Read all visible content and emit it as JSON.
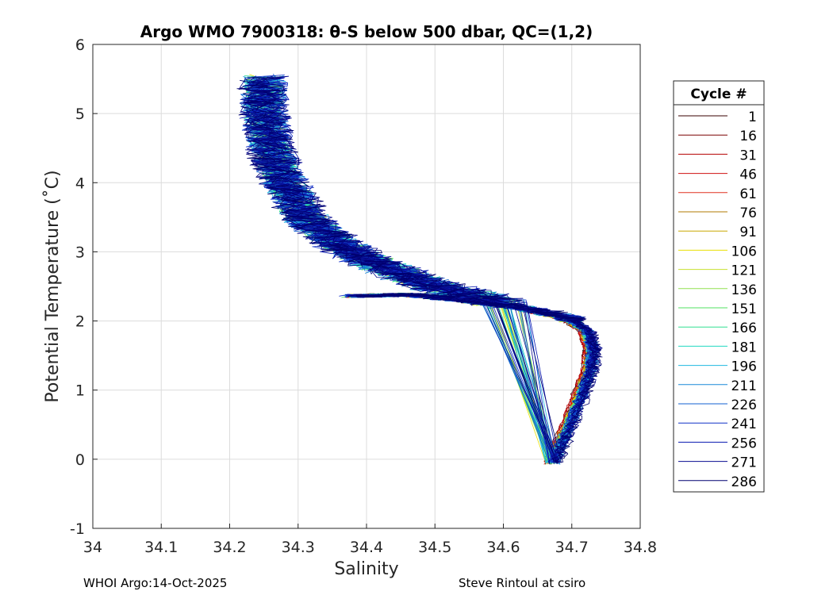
{
  "chart_data": {
    "type": "line",
    "title": "Argo WMO 7900318: θ-S below 500 dbar,  QC=(1,2)",
    "xlabel": "Salinity",
    "ylabel": "Potential Temperature (˚C)",
    "xlim": [
      34,
      34.8
    ],
    "ylim": [
      -1,
      6
    ],
    "xticks": [
      34,
      34.1,
      34.2,
      34.3,
      34.4,
      34.5,
      34.6,
      34.7,
      34.8
    ],
    "xtick_labels": [
      "34",
      "34.1",
      "34.2",
      "34.3",
      "34.4",
      "34.5",
      "34.6",
      "34.7",
      "34.8"
    ],
    "yticks": [
      -1,
      0,
      1,
      2,
      3,
      4,
      5,
      6
    ],
    "ytick_labels": [
      "-1",
      "0",
      "1",
      "2",
      "3",
      "4",
      "5",
      "6"
    ],
    "grid": true,
    "legend_title": "Cycle #",
    "legend_position": "right-outside",
    "series": [
      {
        "name": "1",
        "color": "#3a0000"
      },
      {
        "name": "16",
        "color": "#7a0000"
      },
      {
        "name": "31",
        "color": "#b40000"
      },
      {
        "name": "46",
        "color": "#d01010"
      },
      {
        "name": "61",
        "color": "#e03020"
      },
      {
        "name": "76",
        "color": "#b07800"
      },
      {
        "name": "91",
        "color": "#c8a800"
      },
      {
        "name": "106",
        "color": "#e8e000"
      },
      {
        "name": "121",
        "color": "#c8e030"
      },
      {
        "name": "136",
        "color": "#90e050"
      },
      {
        "name": "151",
        "color": "#50e060"
      },
      {
        "name": "166",
        "color": "#30e090"
      },
      {
        "name": "181",
        "color": "#20d8c0"
      },
      {
        "name": "196",
        "color": "#20b8e0"
      },
      {
        "name": "211",
        "color": "#1888d8"
      },
      {
        "name": "226",
        "color": "#1060d0"
      },
      {
        "name": "241",
        "color": "#1030c8"
      },
      {
        "name": "256",
        "color": "#0818b0"
      },
      {
        "name": "271",
        "color": "#080c90"
      },
      {
        "name": "286",
        "color": "#000070"
      }
    ],
    "profile_shape": [
      {
        "s": 34.67,
        "t": -0.05
      },
      {
        "s": 34.69,
        "t": 0.4
      },
      {
        "s": 34.71,
        "t": 0.9
      },
      {
        "s": 34.725,
        "t": 1.3
      },
      {
        "s": 34.728,
        "t": 1.6
      },
      {
        "s": 34.72,
        "t": 1.85
      },
      {
        "s": 34.69,
        "t": 2.05
      },
      {
        "s": 34.62,
        "t": 2.2
      },
      {
        "s": 34.54,
        "t": 2.3
      },
      {
        "s": 34.46,
        "t": 2.38
      },
      {
        "s": 34.38,
        "t": 2.36
      }
    ],
    "upper_branch": [
      {
        "s": 34.6,
        "t": 2.25
      },
      {
        "s": 34.5,
        "t": 2.5
      },
      {
        "s": 34.42,
        "t": 2.8
      },
      {
        "s": 34.36,
        "t": 3.1
      },
      {
        "s": 34.31,
        "t": 3.5
      },
      {
        "s": 34.28,
        "t": 4.0
      },
      {
        "s": 34.26,
        "t": 4.5
      },
      {
        "s": 34.25,
        "t": 5.0
      },
      {
        "s": 34.25,
        "t": 5.5
      }
    ]
  },
  "footer": {
    "left": "WHOI Argo:14-Oct-2025",
    "right": "Steve Rintoul at csiro"
  }
}
